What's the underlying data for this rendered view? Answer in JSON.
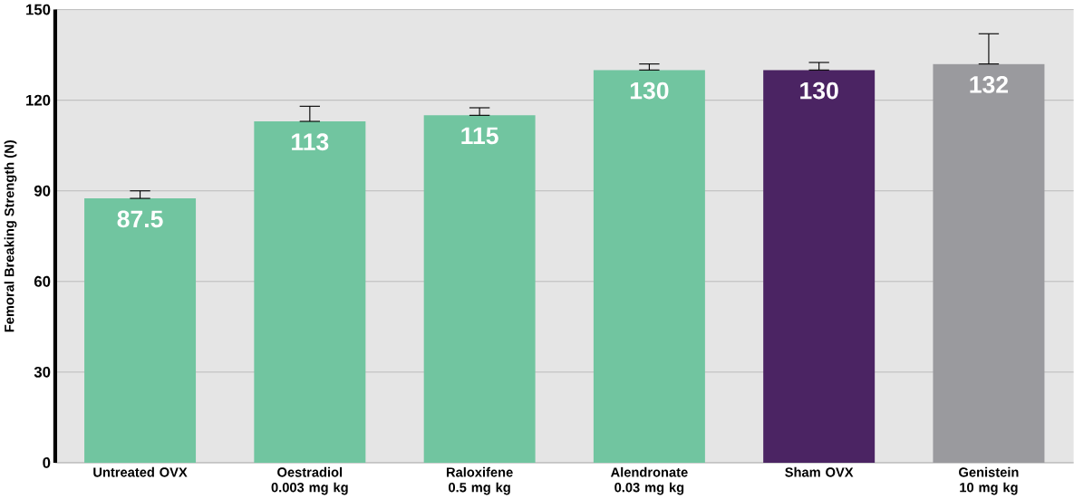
{
  "chart_data": {
    "type": "bar",
    "ylabel": "Femoral Breaking Strength (N)",
    "categories": [
      "Untreated OVX",
      "Oestradiol 0.003 mg kg",
      "Raloxifene 0.5 mg kg",
      "Alendronate 0.03 mg kg",
      "Sham OVX",
      "Genistein 10 mg kg"
    ],
    "values": [
      87.5,
      113,
      115,
      130,
      130,
      132
    ],
    "colors": [
      "#71c5a0",
      "#71c5a0",
      "#71c5a0",
      "#71c5a0",
      "#4b2463",
      "#9a9a9e"
    ],
    "errors": [
      [
        87.5,
        90
      ],
      [
        113,
        118
      ],
      [
        115,
        117.5
      ],
      [
        130,
        132
      ],
      [
        130,
        132.5
      ],
      [
        132,
        142
      ]
    ],
    "ylim": [
      0,
      150
    ],
    "yticks": [
      0,
      30,
      60,
      90,
      120,
      150
    ],
    "grid": "y",
    "data_labels": true
  }
}
